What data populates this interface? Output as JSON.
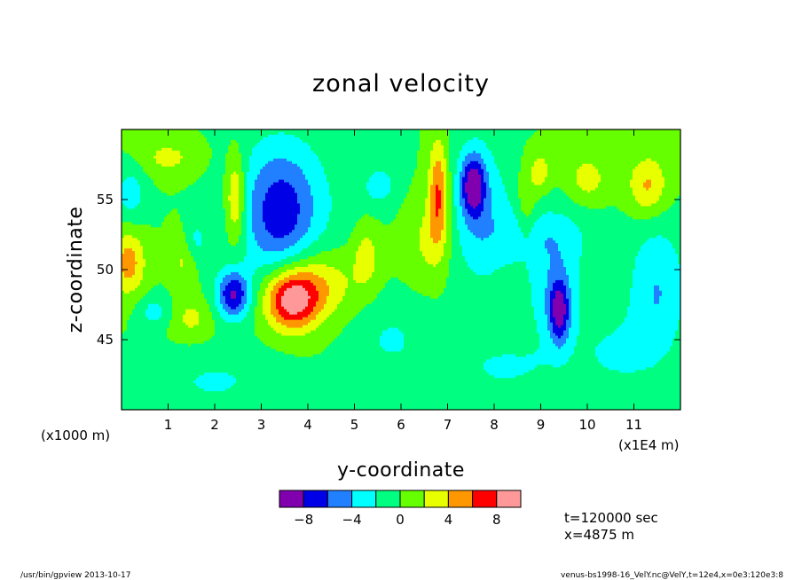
{
  "chart_data": {
    "type": "heatmap",
    "title": "zonal velocity",
    "xlabel": "y-coordinate",
    "ylabel": "z-coordinate",
    "x_unit_label": "(x1E4 m)",
    "y_unit_label": "(x1000 m)",
    "x_ticks": [
      {
        "value": 1,
        "label": "1"
      },
      {
        "value": 2,
        "label": "2"
      },
      {
        "value": 3,
        "label": "3"
      },
      {
        "value": 4,
        "label": "4"
      },
      {
        "value": 5,
        "label": "5"
      },
      {
        "value": 6,
        "label": "6"
      },
      {
        "value": 7,
        "label": "7"
      },
      {
        "value": 8,
        "label": "8"
      },
      {
        "value": 9,
        "label": "9"
      },
      {
        "value": 10,
        "label": "10"
      },
      {
        "value": 11,
        "label": "11"
      }
    ],
    "y_ticks": [
      {
        "value": 45,
        "label": "45"
      },
      {
        "value": 50,
        "label": "50"
      },
      {
        "value": 55,
        "label": "55"
      }
    ],
    "xlim": [
      0,
      12
    ],
    "ylim": [
      40,
      60
    ],
    "colorbar": {
      "levels": [
        -10,
        -8,
        -6,
        -4,
        -2,
        0,
        2,
        4,
        6,
        8,
        10
      ],
      "colors": [
        "#8000b0",
        "#0000e6",
        "#2080ff",
        "#00ffff",
        "#00ff80",
        "#66ff00",
        "#e8ff00",
        "#ff9800",
        "#ff0000",
        "#ff9999"
      ],
      "tick_labels": [
        {
          "value": -8,
          "label": "−8"
        },
        {
          "value": -4,
          "label": "−4"
        },
        {
          "value": 0,
          "label": "0"
        },
        {
          "value": 4,
          "label": "4"
        },
        {
          "value": 8,
          "label": "8"
        }
      ]
    },
    "background_value": 0,
    "features": [
      {
        "y": 3.65,
        "z": 47.8,
        "peak": 9.0,
        "sy": 0.4,
        "sz": 1.5
      },
      {
        "y": 2.4,
        "z": 48.2,
        "peak": -8.0,
        "sy": 0.25,
        "sz": 1.2
      },
      {
        "y": 2.45,
        "z": 55.0,
        "peak": 5.5,
        "sy": 0.15,
        "sz": 2.2
      },
      {
        "y": 3.4,
        "z": 54.0,
        "peak": -4.5,
        "sy": 0.5,
        "sz": 3.0
      },
      {
        "y": 3.5,
        "z": 54.5,
        "peak": -3.0,
        "sy": 0.9,
        "sz": 4.0
      },
      {
        "y": 6.8,
        "z": 55.5,
        "peak": 6.5,
        "sy": 0.15,
        "sz": 2.6
      },
      {
        "y": 7.55,
        "z": 56.0,
        "peak": -8.0,
        "sy": 0.18,
        "sz": 1.5
      },
      {
        "y": 7.7,
        "z": 54.0,
        "peak": -3.5,
        "sy": 0.5,
        "sz": 4.0
      },
      {
        "y": 9.4,
        "z": 47.0,
        "peak": -7.0,
        "sy": 0.15,
        "sz": 1.6
      },
      {
        "y": 9.3,
        "z": 48.5,
        "peak": -3.5,
        "sy": 0.45,
        "sz": 3.0
      },
      {
        "y": 11.5,
        "z": 48.5,
        "peak": -4.0,
        "sy": 0.45,
        "sz": 3.5
      },
      {
        "y": 11.3,
        "z": 56.0,
        "peak": 4.5,
        "sy": 0.3,
        "sz": 1.5
      },
      {
        "y": 0.15,
        "z": 50.5,
        "peak": 5.0,
        "sy": 0.25,
        "sz": 1.6
      },
      {
        "y": 0.2,
        "z": 55.5,
        "peak": -3.0,
        "sy": 0.25,
        "sz": 1.5
      },
      {
        "y": 4.2,
        "z": 49.0,
        "peak": 4.0,
        "sy": 0.6,
        "sz": 1.8
      },
      {
        "y": 1.55,
        "z": 52.0,
        "peak": -3.0,
        "sy": 0.2,
        "sz": 1.2
      },
      {
        "y": 1.35,
        "z": 51.0,
        "peak": 3.0,
        "sy": 0.2,
        "sz": 1.5
      },
      {
        "y": 5.55,
        "z": 56.0,
        "peak": -3.0,
        "sy": 0.25,
        "sz": 1.0
      },
      {
        "y": 5.25,
        "z": 51.0,
        "peak": 3.0,
        "sy": 0.2,
        "sz": 1.6
      },
      {
        "y": 9.0,
        "z": 57.0,
        "peak": 3.2,
        "sy": 0.15,
        "sz": 1.0
      },
      {
        "y": 10.0,
        "z": 56.5,
        "peak": 3.0,
        "sy": 0.3,
        "sz": 1.2
      },
      {
        "y": 0.7,
        "z": 47.0,
        "peak": -2.8,
        "sy": 0.25,
        "sz": 0.8
      },
      {
        "y": 5.8,
        "z": 45.0,
        "peak": -2.2,
        "sy": 0.6,
        "sz": 2.0
      },
      {
        "y": 2.0,
        "z": 42.0,
        "peak": -2.2,
        "sy": 1.0,
        "sz": 1.5
      },
      {
        "y": 8.2,
        "z": 43.0,
        "peak": -2.2,
        "sy": 0.8,
        "sz": 1.5
      },
      {
        "y": 10.6,
        "z": 44.0,
        "peak": -2.2,
        "sy": 0.6,
        "sz": 2.0
      },
      {
        "y": 9.0,
        "z": 52.5,
        "peak": -2.5,
        "sy": 0.8,
        "sz": 1.5
      },
      {
        "y": 6.6,
        "z": 52.0,
        "peak": 2.5,
        "sy": 0.35,
        "sz": 2.0
      },
      {
        "y": 1.0,
        "z": 58.0,
        "peak": 2.5,
        "sy": 0.5,
        "sz": 1.0
      },
      {
        "y": 8.7,
        "z": 54.5,
        "peak": 2.5,
        "sy": 0.15,
        "sz": 2.0
      },
      {
        "y": 1.5,
        "z": 46.5,
        "peak": 2.5,
        "sy": 0.3,
        "sz": 1.0
      }
    ]
  },
  "info": {
    "time_label": "t=120000 sec",
    "position_label": "x=4875 m"
  },
  "footer": {
    "left": "/usr/bin/gpview   2013-10-17",
    "right": "venus-bs1998-16_VelY.nc@VelY,t=12e4,x=0e3:120e3:8"
  }
}
